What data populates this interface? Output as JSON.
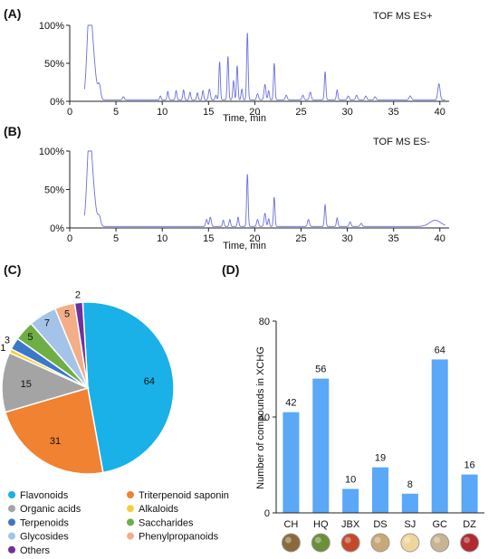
{
  "chart_data": [
    {
      "type": "line",
      "panel": "(A)",
      "label": "TOF MS ES+",
      "xlabel": "Time, min",
      "ylabel": "",
      "xlim": [
        0,
        41
      ],
      "ylim": [
        0,
        100
      ],
      "xticks": [
        0,
        5,
        10,
        15,
        20,
        25,
        30,
        35,
        40
      ],
      "yticks": [
        "0%",
        "50%",
        "100%"
      ],
      "baseline": 2,
      "grid": false,
      "peaks": [
        [
          2.1,
          100,
          0.25
        ],
        [
          2.5,
          55,
          0.3
        ],
        [
          3.2,
          18,
          0.15
        ],
        [
          5.8,
          4,
          0.1
        ],
        [
          9.8,
          5,
          0.08
        ],
        [
          10.6,
          11,
          0.08
        ],
        [
          11.5,
          12,
          0.08
        ],
        [
          12.3,
          13,
          0.08
        ],
        [
          13.0,
          10,
          0.08
        ],
        [
          13.8,
          9,
          0.08
        ],
        [
          14.4,
          12,
          0.08
        ],
        [
          15.1,
          14,
          0.1
        ],
        [
          15.8,
          6,
          0.08
        ],
        [
          16.2,
          50,
          0.08
        ],
        [
          17.1,
          57,
          0.08
        ],
        [
          17.7,
          25,
          0.08
        ],
        [
          18.1,
          45,
          0.08
        ],
        [
          18.6,
          14,
          0.08
        ],
        [
          19.2,
          88,
          0.08
        ],
        [
          20.3,
          8,
          0.1
        ],
        [
          21.1,
          20,
          0.1
        ],
        [
          21.5,
          12,
          0.08
        ],
        [
          22.1,
          48,
          0.08
        ],
        [
          23.4,
          6,
          0.1
        ],
        [
          25.2,
          6,
          0.1
        ],
        [
          26.0,
          10,
          0.1
        ],
        [
          27.6,
          37,
          0.08
        ],
        [
          28.9,
          13,
          0.08
        ],
        [
          30.1,
          5,
          0.1
        ],
        [
          31.0,
          6,
          0.1
        ],
        [
          32.0,
          5,
          0.1
        ],
        [
          33.0,
          4,
          0.1
        ],
        [
          36.8,
          5,
          0.12
        ],
        [
          39.9,
          21,
          0.12
        ]
      ]
    },
    {
      "type": "line",
      "panel": "(B)",
      "label": "TOF MS ES-",
      "xlabel": "Time, min",
      "ylabel": "",
      "xlim": [
        0,
        41
      ],
      "ylim": [
        0,
        100
      ],
      "xticks": [
        0,
        5,
        10,
        15,
        20,
        25,
        30,
        35,
        40
      ],
      "yticks": [
        "0%",
        "50%",
        "100%"
      ],
      "baseline": 2,
      "grid": false,
      "peaks": [
        [
          2.1,
          100,
          0.25
        ],
        [
          2.5,
          45,
          0.3
        ],
        [
          3.2,
          12,
          0.15
        ],
        [
          14.8,
          9,
          0.1
        ],
        [
          15.2,
          12,
          0.1
        ],
        [
          16.6,
          8,
          0.08
        ],
        [
          17.3,
          9,
          0.08
        ],
        [
          18.2,
          12,
          0.08
        ],
        [
          19.2,
          68,
          0.08
        ],
        [
          20.3,
          9,
          0.1
        ],
        [
          21.1,
          17,
          0.1
        ],
        [
          21.5,
          10,
          0.08
        ],
        [
          22.1,
          38,
          0.08
        ],
        [
          25.8,
          9,
          0.1
        ],
        [
          27.6,
          28,
          0.08
        ],
        [
          28.9,
          11,
          0.08
        ],
        [
          30.3,
          6,
          0.1
        ],
        [
          31.5,
          4,
          0.1
        ],
        [
          39.5,
          8,
          0.6
        ]
      ]
    },
    {
      "type": "pie",
      "panel": "(C)",
      "slices": [
        {
          "label": "Flavonoids",
          "value": 64,
          "color": "#1ab0e8"
        },
        {
          "label": "Triterpenoid saponin",
          "value": 31,
          "color": "#f08232"
        },
        {
          "label": "Organic acids",
          "value": 15,
          "color": "#a4a4a4"
        },
        {
          "label": "Alkaloids",
          "value": 1,
          "color": "#f5cf3a"
        },
        {
          "label": "Terpenoids",
          "value": 3,
          "color": "#3b78c6"
        },
        {
          "label": "Saccharides",
          "value": 5,
          "color": "#6fae45"
        },
        {
          "label": "Glycosides",
          "value": 7,
          "color": "#a4c3e8"
        },
        {
          "label": "Phenylpropanoids",
          "value": 5,
          "color": "#f3ae87"
        },
        {
          "label": "Others",
          "value": 2,
          "color": "#7030a0"
        }
      ],
      "legend_order": [
        "Flavonoids",
        "Triterpenoid saponin",
        "Organic acids",
        "Alkaloids",
        "Terpenoids",
        "Saccharides",
        "Glycosides",
        "Phenylpropanoids",
        "Others"
      ],
      "legend_position": "bottom"
    },
    {
      "type": "bar",
      "panel": "(D)",
      "categories": [
        "CH",
        "HQ",
        "JBX",
        "DS",
        "SJ",
        "GC",
        "DZ"
      ],
      "values": [
        42,
        56,
        10,
        19,
        8,
        64,
        16
      ],
      "ylabel": "Number of compounds in XCHG",
      "xlabel": "",
      "ylim": [
        0,
        80
      ],
      "yticks": [
        0,
        40,
        80
      ],
      "color": "#5aa8f7",
      "herb_icon_colors": [
        "#8a6a3c",
        "#6b8f3a",
        "#c24a2a",
        "#c8a878",
        "#f0d59a",
        "#c7b493",
        "#b02a30"
      ]
    }
  ]
}
